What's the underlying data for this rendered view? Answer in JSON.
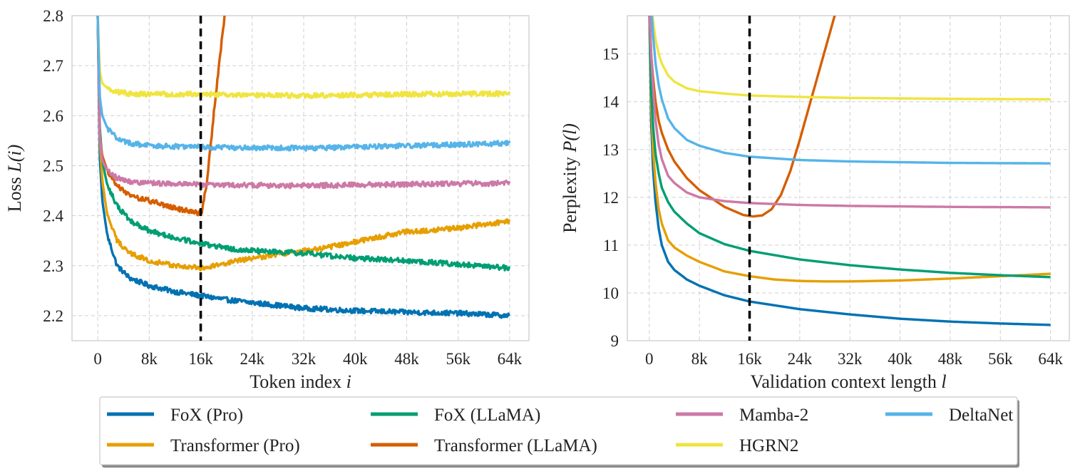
{
  "legend": [
    {
      "name": "FoX (Pro)",
      "color": "#0072b2"
    },
    {
      "name": "Transformer (Pro)",
      "color": "#e69f00"
    },
    {
      "name": "FoX (LLaMA)",
      "color": "#009e73"
    },
    {
      "name": "Transformer (LLaMA)",
      "color": "#d55e00"
    },
    {
      "name": "Mamba-2",
      "color": "#cc79a7"
    },
    {
      "name": "HGRN2",
      "color": "#f0e442"
    },
    {
      "name": "DeltaNet",
      "color": "#56b4e9"
    }
  ],
  "chart_data": [
    {
      "type": "line",
      "title": "",
      "xlabel_text": "Token index ",
      "xlabel_var": "i",
      "ylabel_text": "Loss ",
      "ylabel_var": "L(i)",
      "xlim": [
        -4000,
        67000
      ],
      "ylim": [
        2.15,
        2.8
      ],
      "xticks": [
        0,
        8000,
        16000,
        24000,
        32000,
        40000,
        48000,
        56000,
        64000
      ],
      "xtick_labels": [
        "0",
        "8k",
        "16k",
        "24k",
        "32k",
        "40k",
        "48k",
        "56k",
        "64k"
      ],
      "yticks": [
        2.2,
        2.3,
        2.4,
        2.5,
        2.6,
        2.7,
        2.8
      ],
      "ytick_labels": [
        "2.2",
        "2.3",
        "2.4",
        "2.5",
        "2.6",
        "2.7",
        "2.8"
      ],
      "vline_x": 16000,
      "noise": 0.005,
      "series": [
        {
          "name": "FoX (Pro)",
          "color": "#0072b2",
          "x": [
            0,
            300,
            700,
            1500,
            3000,
            5000,
            8000,
            12000,
            16000,
            20000,
            24000,
            32000,
            40000,
            48000,
            56000,
            64000
          ],
          "y": [
            2.8,
            2.52,
            2.43,
            2.36,
            2.3,
            2.275,
            2.26,
            2.248,
            2.24,
            2.232,
            2.226,
            2.215,
            2.21,
            2.207,
            2.205,
            2.2
          ]
        },
        {
          "name": "Transformer (Pro)",
          "color": "#e69f00",
          "x": [
            0,
            300,
            700,
            1500,
            3000,
            5000,
            8000,
            12000,
            16000,
            20000,
            24000,
            28000,
            32000,
            36000,
            40000,
            48000,
            56000,
            64000
          ],
          "y": [
            2.8,
            2.56,
            2.47,
            2.4,
            2.35,
            2.325,
            2.31,
            2.3,
            2.295,
            2.305,
            2.315,
            2.323,
            2.33,
            2.337,
            2.348,
            2.368,
            2.375,
            2.39
          ]
        },
        {
          "name": "FoX (LLaMA)",
          "color": "#009e73",
          "x": [
            0,
            300,
            700,
            1500,
            3000,
            5000,
            8000,
            12000,
            16000,
            20000,
            24000,
            32000,
            40000,
            48000,
            56000,
            64000
          ],
          "y": [
            2.8,
            2.58,
            2.51,
            2.46,
            2.42,
            2.39,
            2.37,
            2.355,
            2.345,
            2.335,
            2.33,
            2.325,
            2.315,
            2.31,
            2.303,
            2.295
          ]
        },
        {
          "name": "Transformer (LLaMA)",
          "color": "#d55e00",
          "x": [
            0,
            300,
            700,
            1500,
            3000,
            5000,
            8000,
            12000,
            15500,
            16200,
            17000,
            18000,
            19000,
            20200
          ],
          "y": [
            2.8,
            2.56,
            2.52,
            2.49,
            2.46,
            2.44,
            2.43,
            2.415,
            2.405,
            2.41,
            2.47,
            2.6,
            2.72,
            2.85
          ]
        },
        {
          "name": "Mamba-2",
          "color": "#cc79a7",
          "x": [
            0,
            300,
            700,
            1500,
            3000,
            5000,
            8000,
            16000,
            32000,
            48000,
            64000
          ],
          "y": [
            2.8,
            2.56,
            2.51,
            2.49,
            2.475,
            2.468,
            2.465,
            2.462,
            2.46,
            2.463,
            2.465
          ]
        },
        {
          "name": "HGRN2",
          "color": "#f0e442",
          "x": [
            0,
            300,
            700,
            1500,
            3000,
            5000,
            8000,
            16000,
            32000,
            48000,
            64000
          ],
          "y": [
            2.8,
            2.69,
            2.665,
            2.655,
            2.647,
            2.644,
            2.643,
            2.643,
            2.64,
            2.643,
            2.644
          ]
        },
        {
          "name": "DeltaNet",
          "color": "#56b4e9",
          "x": [
            0,
            300,
            700,
            1500,
            3000,
            5000,
            8000,
            16000,
            32000,
            48000,
            64000
          ],
          "y": [
            2.8,
            2.64,
            2.6,
            2.575,
            2.555,
            2.545,
            2.54,
            2.537,
            2.535,
            2.54,
            2.545
          ]
        }
      ]
    },
    {
      "type": "line",
      "title": "",
      "xlabel_text": "Validation context length ",
      "xlabel_var": "l",
      "ylabel_text": "Perplexity ",
      "ylabel_var": "P(l)",
      "xlim": [
        -3500,
        67000
      ],
      "ylim": [
        9,
        15.8
      ],
      "xticks": [
        0,
        8000,
        16000,
        24000,
        32000,
        40000,
        48000,
        56000,
        64000
      ],
      "xtick_labels": [
        "0",
        "8k",
        "16k",
        "24k",
        "32k",
        "40k",
        "48k",
        "56k",
        "64k"
      ],
      "yticks": [
        9,
        10,
        11,
        12,
        13,
        14,
        15
      ],
      "ytick_labels": [
        "9",
        "10",
        "11",
        "12",
        "13",
        "14",
        "15"
      ],
      "vline_x": 16000,
      "noise": 0,
      "series": [
        {
          "name": "FoX (Pro)",
          "color": "#0072b2",
          "x": [
            0,
            300,
            600,
            1000,
            1500,
            2000,
            3000,
            4000,
            6000,
            8000,
            12000,
            16000,
            24000,
            32000,
            40000,
            48000,
            56000,
            64000
          ],
          "y": [
            16,
            13.6,
            12.6,
            11.9,
            11.35,
            11.0,
            10.65,
            10.48,
            10.28,
            10.15,
            9.95,
            9.82,
            9.66,
            9.55,
            9.46,
            9.4,
            9.36,
            9.33
          ]
        },
        {
          "name": "Transformer (Pro)",
          "color": "#e69f00",
          "x": [
            0,
            300,
            600,
            1000,
            1500,
            2000,
            3000,
            4000,
            6000,
            8000,
            12000,
            16000,
            20000,
            24000,
            28000,
            32000,
            40000,
            48000,
            56000,
            64000
          ],
          "y": [
            16,
            14.0,
            13.0,
            12.3,
            11.75,
            11.45,
            11.1,
            10.95,
            10.78,
            10.65,
            10.45,
            10.35,
            10.28,
            10.25,
            10.24,
            10.24,
            10.26,
            10.3,
            10.35,
            10.4
          ]
        },
        {
          "name": "FoX (LLaMA)",
          "color": "#009e73",
          "x": [
            0,
            300,
            600,
            1000,
            1500,
            2000,
            3000,
            4000,
            6000,
            8000,
            12000,
            16000,
            24000,
            32000,
            40000,
            48000,
            56000,
            64000
          ],
          "y": [
            16,
            14.3,
            13.5,
            12.9,
            12.5,
            12.2,
            11.9,
            11.7,
            11.45,
            11.25,
            11.02,
            10.88,
            10.7,
            10.58,
            10.49,
            10.42,
            10.37,
            10.33
          ]
        },
        {
          "name": "Transformer (LLaMA)",
          "color": "#d55e00",
          "x": [
            0,
            300,
            600,
            1000,
            1500,
            2000,
            3000,
            4000,
            6000,
            8000,
            12000,
            15000,
            16500,
            18000,
            19500,
            21000,
            22500,
            24000,
            25500,
            27000,
            28500,
            30000,
            31000
          ],
          "y": [
            16,
            15.0,
            14.5,
            14.0,
            13.6,
            13.35,
            13.0,
            12.75,
            12.4,
            12.15,
            11.8,
            11.63,
            11.6,
            11.62,
            11.75,
            12.05,
            12.55,
            13.2,
            13.9,
            14.6,
            15.3,
            16.0,
            16.5
          ]
        },
        {
          "name": "Mamba-2",
          "color": "#cc79a7",
          "x": [
            0,
            300,
            600,
            1000,
            1500,
            2000,
            3000,
            4000,
            6000,
            8000,
            12000,
            16000,
            24000,
            32000,
            48000,
            64000
          ],
          "y": [
            16,
            15.0,
            14.3,
            13.6,
            13.1,
            12.8,
            12.45,
            12.3,
            12.1,
            12.0,
            11.92,
            11.88,
            11.84,
            11.82,
            11.8,
            11.79
          ]
        },
        {
          "name": "HGRN2",
          "color": "#f0e442",
          "x": [
            0,
            300,
            600,
            1000,
            1500,
            2000,
            3000,
            4000,
            6000,
            8000,
            12000,
            16000,
            24000,
            32000,
            48000,
            64000
          ],
          "y": [
            17,
            16.2,
            15.7,
            15.3,
            15.0,
            14.8,
            14.55,
            14.42,
            14.28,
            14.22,
            14.17,
            14.13,
            14.1,
            14.08,
            14.06,
            14.05
          ]
        },
        {
          "name": "DeltaNet",
          "color": "#56b4e9",
          "x": [
            0,
            300,
            600,
            1000,
            1500,
            2000,
            3000,
            4000,
            6000,
            8000,
            12000,
            16000,
            24000,
            32000,
            48000,
            64000
          ],
          "y": [
            17,
            16.0,
            15.4,
            14.8,
            14.35,
            14.05,
            13.65,
            13.45,
            13.2,
            13.08,
            12.93,
            12.85,
            12.78,
            12.75,
            12.72,
            12.71
          ]
        }
      ]
    }
  ]
}
